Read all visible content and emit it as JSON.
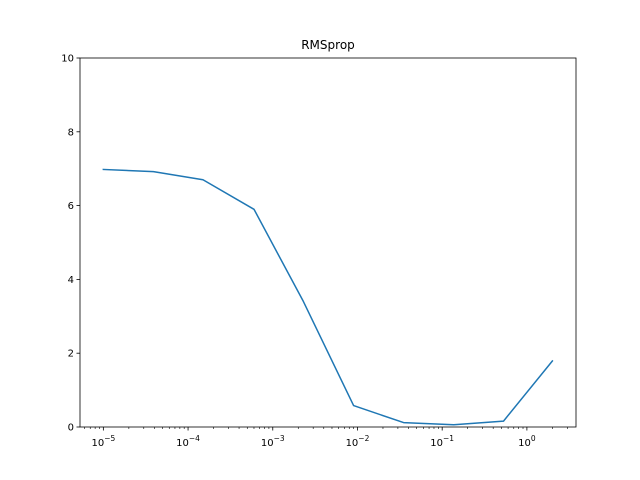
{
  "chart_data": {
    "type": "line",
    "title": "RMSprop",
    "xlabel": "",
    "ylabel": "",
    "xscale": "log",
    "xlim": [
      5.3e-06,
      3.8
    ],
    "ylim": [
      0,
      10
    ],
    "grid": false,
    "xticks": [
      {
        "value": 1e-05,
        "mantissa": "10",
        "exponent": "−5"
      },
      {
        "value": 0.0001,
        "mantissa": "10",
        "exponent": "−4"
      },
      {
        "value": 0.001,
        "mantissa": "10",
        "exponent": "−3"
      },
      {
        "value": 0.01,
        "mantissa": "10",
        "exponent": "−2"
      },
      {
        "value": 0.1,
        "mantissa": "10",
        "exponent": "−1"
      },
      {
        "value": 1,
        "mantissa": "10",
        "exponent": "0"
      }
    ],
    "yticks": [
      {
        "value": 0,
        "label": "0"
      },
      {
        "value": 2,
        "label": "2"
      },
      {
        "value": 4,
        "label": "4"
      },
      {
        "value": 6,
        "label": "6"
      },
      {
        "value": 8,
        "label": "8"
      },
      {
        "value": 10,
        "label": "10"
      }
    ],
    "series": [
      {
        "color": "#1f77b4",
        "x": [
          1e-05,
          3.9e-05,
          0.00015,
          0.0006,
          0.0023,
          0.009,
          0.035,
          0.137,
          0.53,
          2.0
        ],
        "y": [
          6.98,
          6.92,
          6.7,
          5.9,
          3.4,
          0.58,
          0.12,
          0.06,
          0.16,
          1.79
        ]
      }
    ]
  }
}
